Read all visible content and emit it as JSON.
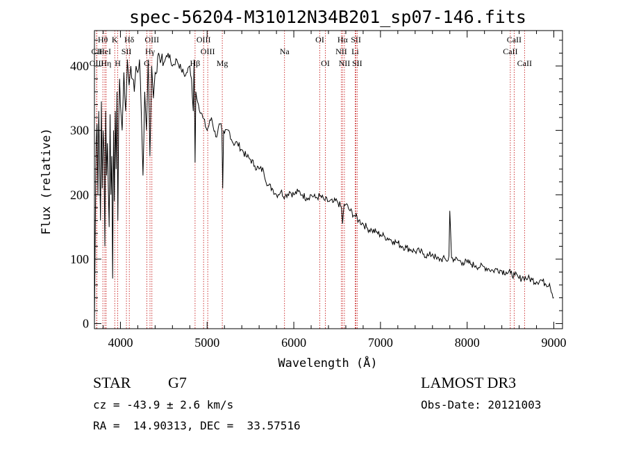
{
  "chart_data": {
    "type": "line",
    "title": "spec-56204-M31012N34B201_sp07-146.fits",
    "xlabel": "Wavelength (Å)",
    "ylabel": "Flux (relative)",
    "xlim": [
      3700,
      9100
    ],
    "ylim": [
      -8,
      455
    ],
    "xticks": [
      4000,
      5000,
      6000,
      7000,
      8000,
      9000
    ],
    "xtick_labels": [
      "4000",
      "5000",
      "6000",
      "7000",
      "8000",
      "9000"
    ],
    "yticks": [
      0,
      100,
      200,
      300,
      400
    ],
    "ytick_labels": [
      "0",
      "100",
      "200",
      "300",
      "400"
    ],
    "series": [
      {
        "name": "flux",
        "x": [
          3700,
          3710,
          3720,
          3730,
          3740,
          3750,
          3760,
          3770,
          3780,
          3790,
          3800,
          3810,
          3820,
          3830,
          3840,
          3850,
          3860,
          3870,
          3880,
          3890,
          3900,
          3910,
          3920,
          3930,
          3940,
          3950,
          3960,
          3970,
          3980,
          3990,
          4000,
          4020,
          4040,
          4060,
          4080,
          4100,
          4120,
          4140,
          4160,
          4180,
          4200,
          4220,
          4240,
          4260,
          4280,
          4300,
          4320,
          4340,
          4360,
          4380,
          4400,
          4450,
          4500,
          4550,
          4600,
          4650,
          4700,
          4750,
          4800,
          4820,
          4840,
          4850,
          4861,
          4870,
          4880,
          4900,
          4950,
          5000,
          5050,
          5100,
          5150,
          5170,
          5180,
          5190,
          5200,
          5250,
          5300,
          5350,
          5400,
          5450,
          5500,
          5550,
          5600,
          5650,
          5700,
          5750,
          5800,
          5850,
          5900,
          5950,
          6000,
          6050,
          6100,
          6150,
          6200,
          6250,
          6300,
          6350,
          6400,
          6450,
          6500,
          6550,
          6563,
          6580,
          6600,
          6650,
          6700,
          6750,
          6800,
          6850,
          6900,
          6950,
          7000,
          7050,
          7100,
          7150,
          7200,
          7250,
          7300,
          7350,
          7400,
          7450,
          7500,
          7550,
          7600,
          7650,
          7700,
          7750,
          7780,
          7790,
          7800,
          7820,
          7850,
          7900,
          7950,
          8000,
          8050,
          8100,
          8150,
          8200,
          8250,
          8300,
          8350,
          8400,
          8450,
          8500,
          8550,
          8600,
          8650,
          8700,
          8750,
          8800,
          8850,
          8900,
          8950,
          9000
        ],
        "y": [
          0,
          150,
          280,
          310,
          200,
          330,
          250,
          160,
          345,
          210,
          300,
          270,
          120,
          330,
          230,
          280,
          210,
          150,
          325,
          200,
          260,
          70,
          300,
          190,
          330,
          240,
          360,
          160,
          310,
          380,
          340,
          300,
          390,
          330,
          410,
          370,
          400,
          380,
          360,
          400,
          390,
          410,
          330,
          230,
          360,
          300,
          410,
          260,
          400,
          350,
          390,
          415,
          405,
          420,
          400,
          410,
          395,
          385,
          400,
          380,
          330,
          410,
          250,
          360,
          350,
          340,
          320,
          300,
          320,
          290,
          310,
          300,
          210,
          300,
          295,
          300,
          280,
          280,
          270,
          260,
          255,
          245,
          240,
          238,
          215,
          210,
          200,
          205,
          198,
          205,
          200,
          205,
          200,
          195,
          200,
          195,
          198,
          192,
          190,
          188,
          190,
          180,
          155,
          185,
          185,
          175,
          168,
          160,
          155,
          148,
          145,
          142,
          138,
          135,
          132,
          128,
          125,
          120,
          118,
          115,
          112,
          112,
          108,
          105,
          108,
          100,
          100,
          100,
          98,
          105,
          175,
          102,
          100,
          98,
          95,
          95,
          92,
          90,
          88,
          88,
          85,
          82,
          85,
          82,
          80,
          78,
          75,
          70,
          72,
          70,
          68,
          65,
          68,
          62,
          62,
          40
        ]
      }
    ],
    "line_markers": [
      {
        "label": "Hθ",
        "x": 3797,
        "row": 0
      },
      {
        "label": "CII",
        "x": 3727,
        "row": 1
      },
      {
        "label": "HeI",
        "x": 3820,
        "row": 1
      },
      {
        "label": "OIII",
        "x": 3725,
        "row": 2
      },
      {
        "label": "Hη",
        "x": 3835,
        "row": 2
      },
      {
        "label": "K",
        "x": 3934,
        "row": 0
      },
      {
        "label": "SII",
        "x": 4069,
        "row": 1
      },
      {
        "label": "H",
        "x": 3969,
        "row": 2
      },
      {
        "label": "Hδ",
        "x": 4102,
        "row": 0
      },
      {
        "label": "OIII",
        "x": 4363,
        "row": 0
      },
      {
        "label": "Hγ",
        "x": 4341,
        "row": 1
      },
      {
        "label": "G",
        "x": 4305,
        "row": 2
      },
      {
        "label": "OIII",
        "x": 4959,
        "row": 0
      },
      {
        "label": "OIII",
        "x": 5007,
        "row": 1
      },
      {
        "label": "Hβ",
        "x": 4861,
        "row": 2
      },
      {
        "label": "Mg",
        "x": 5175,
        "row": 2
      },
      {
        "label": "Na",
        "x": 5893,
        "row": 1
      },
      {
        "label": "OI",
        "x": 6300,
        "row": 0
      },
      {
        "label": "OI",
        "x": 6364,
        "row": 2
      },
      {
        "label": "Hα",
        "x": 6563,
        "row": 0
      },
      {
        "label": "NII",
        "x": 6548,
        "row": 1
      },
      {
        "label": "NII",
        "x": 6584,
        "row": 2
      },
      {
        "label": "SII",
        "x": 6717,
        "row": 0
      },
      {
        "label": "Li",
        "x": 6708,
        "row": 1
      },
      {
        "label": "SII",
        "x": 6731,
        "row": 2
      },
      {
        "label": "CaII",
        "x": 8542,
        "row": 0
      },
      {
        "label": "CaII",
        "x": 8498,
        "row": 1
      },
      {
        "label": "CaII",
        "x": 8662,
        "row": 2
      }
    ]
  },
  "footer": {
    "object_class": "STAR",
    "subclass": "G7",
    "survey": "LAMOST DR3",
    "redshift": "cz = -43.9 ± 2.6 km/s",
    "obs_date": "Obs-Date: 20121003",
    "coords": "RA =  14.90313, DEC =  33.57516"
  },
  "colors": {
    "line": "#000000",
    "marker": "#c00000",
    "background": "#ffffff"
  }
}
